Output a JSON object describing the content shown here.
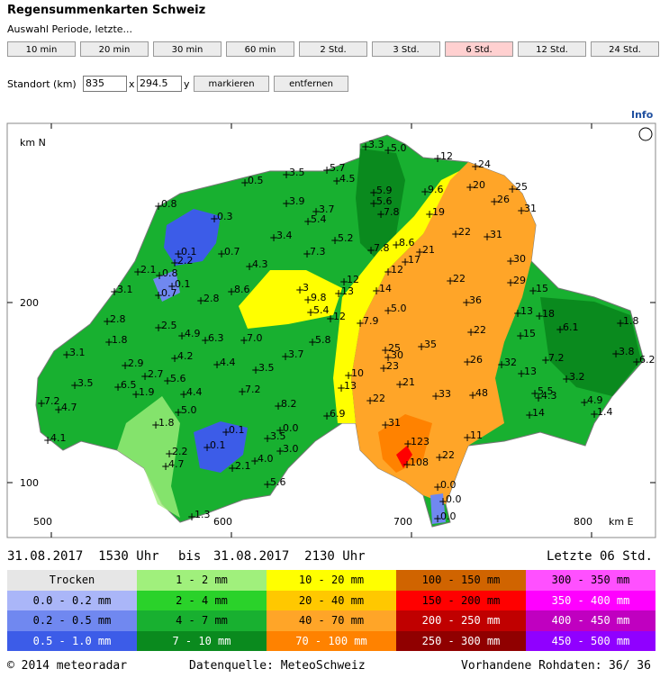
{
  "title": "Regensummenkarten Schweiz",
  "period_label": "Auswahl Periode, letzte...",
  "period_buttons": [
    "10 min",
    "20 min",
    "30 min",
    "60 min",
    "2 Std.",
    "3 Std.",
    "6 Std.",
    "12 Std.",
    "24 Std."
  ],
  "location": {
    "label": "Standort (km)",
    "x_value": "835",
    "x_sep": "x",
    "y_value": "294.5",
    "y_sep": "y",
    "buttons": [
      "markieren",
      "entfernen"
    ]
  },
  "info_link": "Info",
  "map": {
    "axis_label_y": "km N",
    "axis_label_x": "km E",
    "y_ticks": [
      "200",
      "100"
    ],
    "x_ticks": [
      "500",
      "600",
      "700",
      "800"
    ],
    "stations": [
      "3.3",
      "5.0",
      "12",
      "24",
      "3.5",
      "5.7",
      "4.5",
      "0.5",
      "20",
      "25",
      "5.9",
      "9.6",
      "0.8",
      "3.9",
      "5.6",
      "26",
      "3.7",
      "7.8",
      "19",
      "31",
      "0.3",
      "5.4",
      "3.4",
      "5.2",
      "22",
      "31",
      "8.6",
      "0.1",
      "0.7",
      "7.3",
      "7.8",
      "21",
      "2.2",
      "4.3",
      "17",
      "30",
      "2.1",
      "0.8",
      "12",
      "0.1",
      "12",
      "22",
      "29",
      "3.1",
      "0.7",
      "8.6",
      "3",
      "13",
      "14",
      "15",
      "2.8",
      "9.8",
      "36",
      "5.4",
      "5.0",
      "13",
      "18",
      "2.8",
      "12",
      "7.9",
      "6.1",
      "1.8",
      "2.5",
      "4.9",
      "22",
      "15",
      "1.8",
      "6.3",
      "7.0",
      "5.8",
      "35",
      "25",
      "3.8",
      "3.1",
      "4.2",
      "3.7",
      "30",
      "26",
      "32",
      "7.2",
      "6.2",
      "2.9",
      "4.4",
      "23",
      "2.7",
      "3.5",
      "10",
      "13",
      "3.2",
      "3.5",
      "6.5",
      "5.6",
      "13",
      "21",
      "48",
      "1.9",
      "7.2",
      "33",
      "5.5",
      "7.2",
      "4.7",
      "4.4",
      "22",
      "4.3",
      "4.9",
      "5.0",
      "8.2",
      "6.9",
      "14",
      "1.4",
      "1.8",
      "0.0",
      "31",
      "0.1",
      "4.1",
      "3.5",
      "11",
      "0.1",
      "2.2",
      "3.0",
      "123",
      "4.7",
      "4.0",
      "2.1",
      "22",
      "108",
      "5.6",
      "0.0",
      "0.0",
      "1.3",
      "0.0"
    ]
  },
  "time_range": {
    "start": "31.08.2017  1530 Uhr",
    "sep": "bis",
    "end": "31.08.2017  2130 Uhr",
    "period": "Letzte 06 Std."
  },
  "legend": [
    [
      {
        "label": "Trocken",
        "color": "#e6e6e6"
      },
      {
        "label": "1 - 2 mm",
        "color": "#a0f07c"
      },
      {
        "label": "10 - 20 mm",
        "color": "#ffff00"
      },
      {
        "label": "100 - 150 mm",
        "color": "#d06400"
      },
      {
        "label": "300 - 350 mm",
        "color": "#ff50ff"
      }
    ],
    [
      {
        "label": "0.0 - 0.2 mm",
        "color": "#aab6f8"
      },
      {
        "label": "2 - 4 mm",
        "color": "#2ad22a"
      },
      {
        "label": "20 - 40 mm",
        "color": "#ffc800"
      },
      {
        "label": "150 - 200 mm",
        "color": "#ff0000"
      },
      {
        "label": "350 - 400 mm",
        "color": "#ff00ff"
      }
    ],
    [
      {
        "label": "0.2 - 0.5 mm",
        "color": "#7088f0"
      },
      {
        "label": "4 - 7 mm",
        "color": "#18b030"
      },
      {
        "label": "40 - 70 mm",
        "color": "#ffa528"
      },
      {
        "label": "200 - 250 mm",
        "color": "#c00000"
      },
      {
        "label": "400 - 450 mm",
        "color": "#c000c0"
      }
    ],
    [
      {
        "label": "0.5 - 1.0 mm",
        "color": "#3c5ce8"
      },
      {
        "label": "7 - 10 mm",
        "color": "#0a8a1e"
      },
      {
        "label": "70 - 100 mm",
        "color": "#ff8200"
      },
      {
        "label": "250 - 300 mm",
        "color": "#900000"
      },
      {
        "label": "450 - 500 mm",
        "color": "#9000ff"
      }
    ]
  ],
  "footer": {
    "copyright": "© 2014 meteoradar",
    "source": "Datenquelle: MeteoSchweiz",
    "raw_label": "Vorhandene Rohdaten:",
    "raw_value": "36/ 36"
  }
}
